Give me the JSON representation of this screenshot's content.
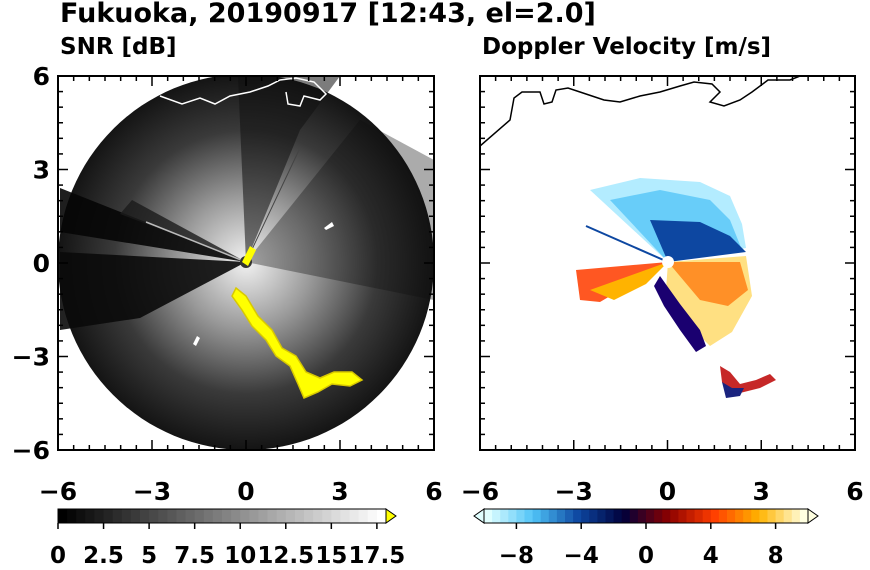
{
  "title": "Fukuoka, 20190917 [12:43, el=2.0]",
  "chart_data": [
    {
      "type": "heatmap",
      "title": "SNR [dB]",
      "xlim": [
        -6,
        6
      ],
      "ylim": [
        -6,
        6
      ],
      "x_ticks": [
        -6,
        -3,
        0,
        3,
        6
      ],
      "y_ticks": [
        6,
        3,
        0,
        -3,
        -6
      ],
      "xlabel": "",
      "ylabel": "",
      "colorbar": {
        "range": [
          0,
          18
        ],
        "step": 0.5,
        "extend": "max",
        "colors": [
          "#000000",
          "#ffffff",
          "#ffff00"
        ],
        "tick_values": [
          0,
          2.5,
          5,
          7.5,
          10,
          12.5,
          15,
          17.5
        ],
        "tick_labels": [
          "0",
          "2.5",
          "5",
          "7.5",
          "10",
          "12.5",
          "15",
          "17.5"
        ]
      }
    },
    {
      "type": "heatmap",
      "title": "Doppler Velocity [m/s]",
      "xlim": [
        -6,
        6
      ],
      "ylim": [
        -6,
        6
      ],
      "x_ticks": [
        -6,
        -3,
        0,
        3,
        6
      ],
      "y_ticks": [
        6,
        3,
        0,
        -3,
        -6
      ],
      "xlabel": "",
      "ylabel": "",
      "colorbar": {
        "range": [
          -10,
          10
        ],
        "extend": "both",
        "colors": [
          "#e0ffff",
          "#4fc3f7",
          "#0d47a1",
          "#00003a",
          "#8b0000",
          "#ff3d00",
          "#ffb300",
          "#ffffe0"
        ],
        "tick_values": [
          -8,
          -4,
          0,
          4,
          8
        ],
        "tick_labels": [
          "−8",
          "−4",
          "0",
          "4",
          "8"
        ]
      }
    }
  ]
}
